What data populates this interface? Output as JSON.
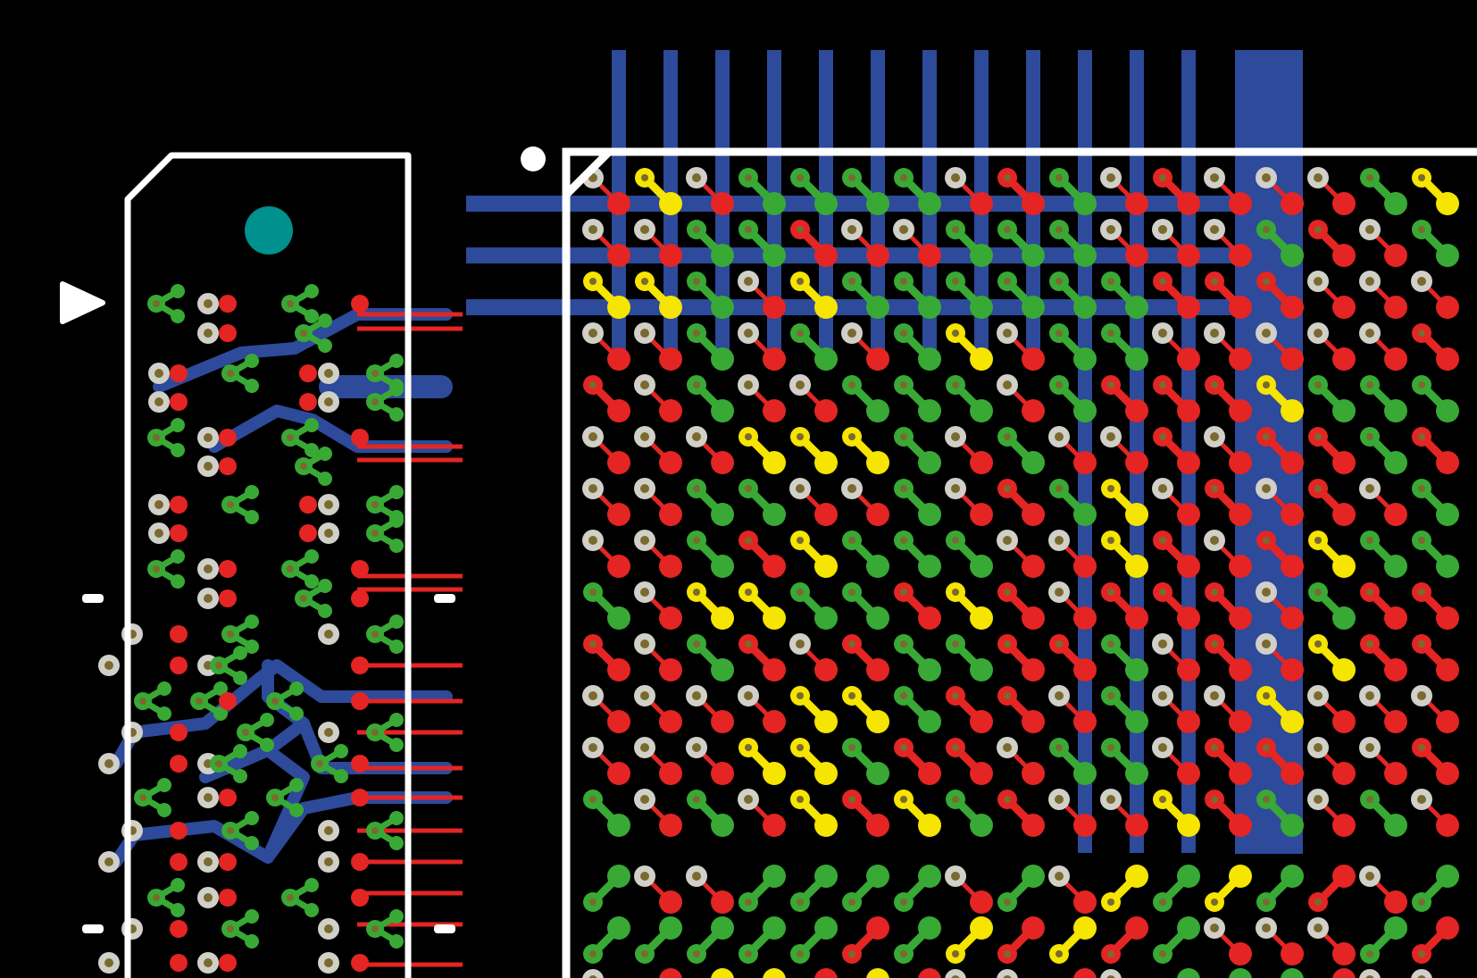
{
  "colors": {
    "background": "#000000",
    "outline": "#ffffff",
    "trace_blue": "#2d4a9b",
    "net_green": "#39a935",
    "net_red": "#e42523",
    "net_yellow": "#f5e500",
    "pad_silver": "#d0d0c8",
    "drill_brown": "#7a6a30",
    "fiducial_teal": "#00908e"
  },
  "icons": {
    "pin1_marker": "triangle-right-icon",
    "fiducial": "circle-icon",
    "bga_pin1_dot": "dot-icon"
  }
}
